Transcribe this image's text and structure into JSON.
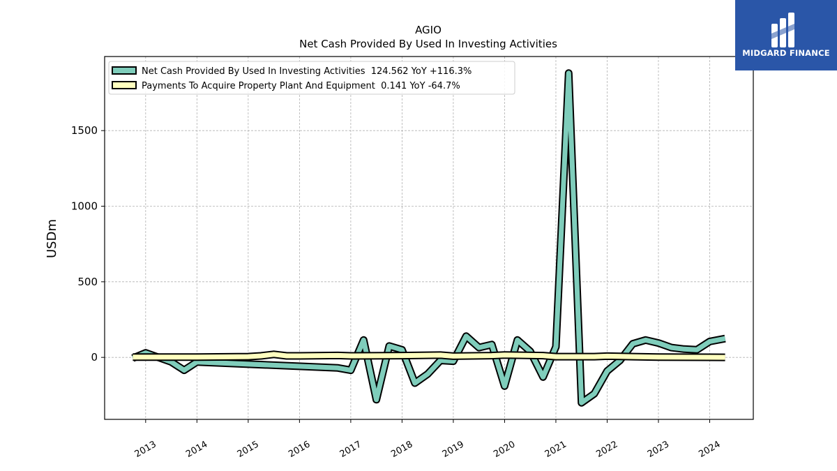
{
  "chart_data": {
    "type": "line",
    "title": "AGIO",
    "subtitle": "Net Cash Provided By Used In Investing Activities",
    "ylabel": "USDm",
    "xlabel": "",
    "ylim": [
      -410,
      1990
    ],
    "xlim": [
      2012.2,
      2024.85
    ],
    "yticks": [
      0,
      500,
      1000,
      1500
    ],
    "xticks": [
      "2013",
      "2014",
      "2015",
      "2016",
      "2017",
      "2018",
      "2019",
      "2020",
      "2021",
      "2022",
      "2023",
      "2024"
    ],
    "grid": true,
    "legend_position": "top-left",
    "series": [
      {
        "name": "Net Cash Provided By Used In Investing Activities  124.562 YoY +116.3%",
        "color": "#7fcdbb",
        "points": [
          [
            2012.75,
            -5
          ],
          [
            2013.0,
            30
          ],
          [
            2013.25,
            0
          ],
          [
            2013.5,
            -30
          ],
          [
            2013.75,
            -85
          ],
          [
            2014.0,
            -30
          ],
          [
            2016.75,
            -70
          ],
          [
            2017.0,
            -85
          ],
          [
            2017.25,
            115
          ],
          [
            2017.5,
            -280
          ],
          [
            2017.75,
            75
          ],
          [
            2018.0,
            50
          ],
          [
            2018.25,
            -170
          ],
          [
            2018.5,
            -110
          ],
          [
            2018.75,
            -20
          ],
          [
            2019.0,
            -25
          ],
          [
            2019.25,
            140
          ],
          [
            2019.5,
            65
          ],
          [
            2019.75,
            85
          ],
          [
            2020.0,
            -190
          ],
          [
            2020.25,
            115
          ],
          [
            2020.5,
            40
          ],
          [
            2020.75,
            -130
          ],
          [
            2021.0,
            70
          ],
          [
            2021.25,
            1880
          ],
          [
            2021.5,
            -300
          ],
          [
            2021.75,
            -240
          ],
          [
            2022.0,
            -90
          ],
          [
            2022.25,
            -20
          ],
          [
            2022.5,
            90
          ],
          [
            2022.75,
            115
          ],
          [
            2023.0,
            95
          ],
          [
            2023.25,
            65
          ],
          [
            2023.5,
            55
          ],
          [
            2023.75,
            50
          ],
          [
            2024.0,
            105
          ],
          [
            2024.3,
            124.562
          ]
        ]
      },
      {
        "name": "Payments To Acquire Property Plant And Equipment  0.141 YoY -64.7%",
        "color": "#ffffbf",
        "points": [
          [
            2012.75,
            2
          ],
          [
            2014.0,
            2
          ],
          [
            2015.0,
            5
          ],
          [
            2015.25,
            10
          ],
          [
            2015.5,
            20
          ],
          [
            2015.75,
            10
          ],
          [
            2016.0,
            10
          ],
          [
            2016.75,
            13
          ],
          [
            2017.0,
            10
          ],
          [
            2018.0,
            12
          ],
          [
            2018.75,
            15
          ],
          [
            2019.0,
            8
          ],
          [
            2019.75,
            12
          ],
          [
            2020.0,
            16
          ],
          [
            2020.75,
            12
          ],
          [
            2021.0,
            5
          ],
          [
            2021.75,
            5
          ],
          [
            2022.0,
            8
          ],
          [
            2022.5,
            5
          ],
          [
            2023.0,
            2
          ],
          [
            2024.3,
            0.141
          ]
        ]
      }
    ]
  },
  "logo": {
    "text": "MIDGARD FINANCE",
    "background": "#2a56a8"
  },
  "colors": {
    "grid": "#b0b0b0",
    "frame": "#000000",
    "outline": "#000000"
  }
}
